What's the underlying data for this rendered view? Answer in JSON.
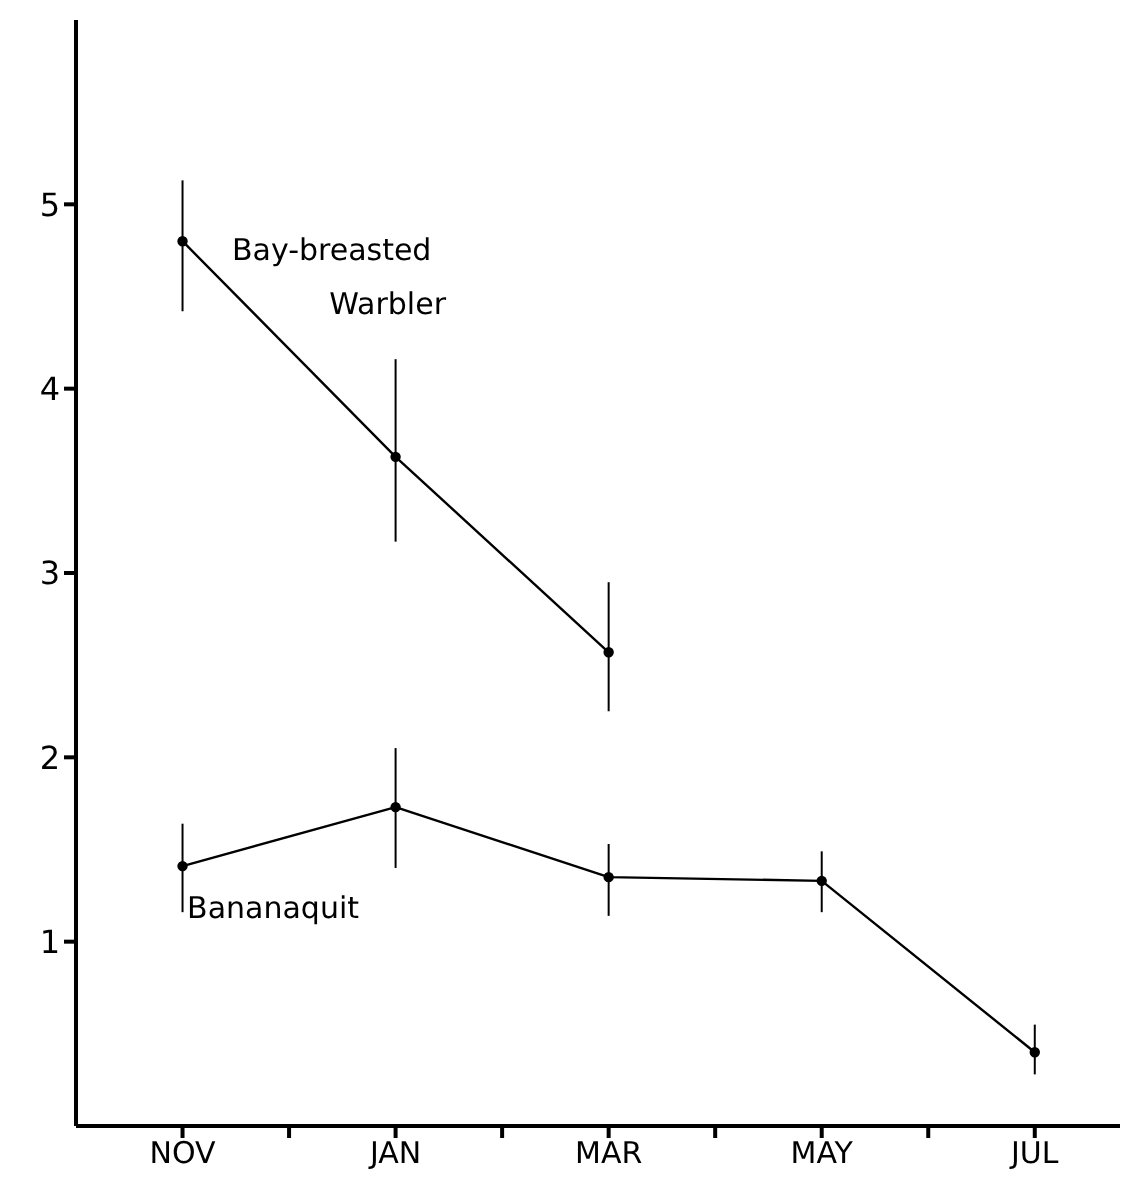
{
  "chart_data": {
    "type": "line",
    "categories": [
      "NOV",
      null,
      "JAN",
      null,
      "MAR",
      null,
      "MAY",
      null,
      "JUL"
    ],
    "series": [
      {
        "name": "Bay-breasted Warbler",
        "color": "#000000",
        "values": [
          4.8,
          null,
          3.63,
          null,
          2.57,
          null,
          null,
          null,
          null
        ],
        "errors": [
          [
            4.42,
            5.13
          ],
          null,
          [
            3.17,
            4.16
          ],
          null,
          [
            2.25,
            2.95
          ],
          null,
          null,
          null,
          null
        ]
      },
      {
        "name": "Bananaquit",
        "color": "#000000",
        "values": [
          1.41,
          null,
          1.73,
          null,
          1.35,
          null,
          1.33,
          null,
          0.4
        ],
        "errors": [
          [
            1.16,
            1.64
          ],
          null,
          [
            1.4,
            2.05
          ],
          null,
          [
            1.14,
            1.53
          ],
          null,
          [
            1.16,
            1.49
          ],
          null,
          [
            0.28,
            0.55
          ]
        ]
      }
    ],
    "ylim": [
      0,
      6
    ],
    "yticks": [
      1,
      2,
      3,
      4,
      5
    ],
    "marker": "circle",
    "line_style": "solid"
  }
}
